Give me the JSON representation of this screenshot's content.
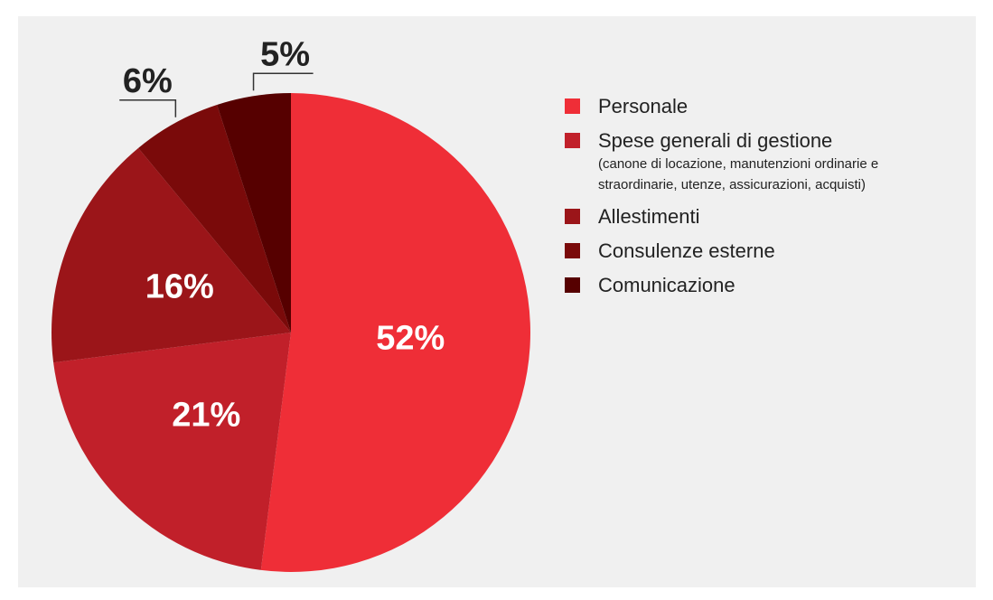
{
  "chart_data": {
    "type": "pie",
    "categories": [
      "Personale",
      "Spese generali di gestione",
      "Allestimenti",
      "Consulenze esterne",
      "Comunicazione"
    ],
    "category_notes": [
      null,
      "(canone di locazione, manutenzioni ordinarie e straordinarie, utenze, assicurazioni, acquisti)",
      null,
      null,
      null
    ],
    "values": [
      52,
      21,
      16,
      6,
      5
    ],
    "value_labels": [
      "52%",
      "21%",
      "16%",
      "6%",
      "5%"
    ],
    "colors": [
      "#ef2e37",
      "#c1202a",
      "#9b1519",
      "#7a0a0a",
      "#560000"
    ]
  }
}
